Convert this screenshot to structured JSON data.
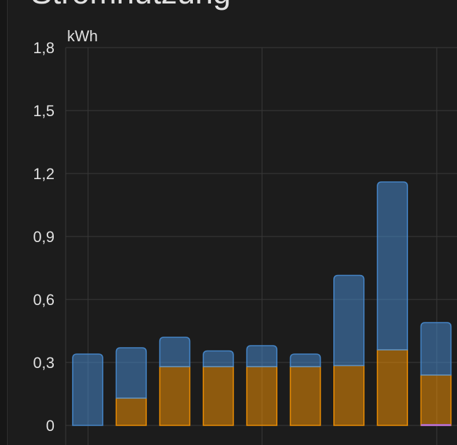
{
  "card": {
    "title": "Stromnutzung"
  },
  "chart_data": {
    "type": "bar",
    "ylabel": "kWh",
    "ylim": [
      0,
      1.8
    ],
    "y_ticks": [
      "0",
      "0,3",
      "0,6",
      "0,9",
      "1,2",
      "1,5",
      "1,8"
    ],
    "y_tick_values": [
      0,
      0.3,
      0.6,
      0.9,
      1.2,
      1.5,
      1.8
    ],
    "grid": true,
    "stacked": true,
    "bar_count": 9,
    "series": [
      {
        "color": "#ff9800",
        "values": [
          0,
          0.13,
          0.28,
          0.28,
          0.28,
          0.28,
          0.285,
          0.36,
          0.24
        ]
      },
      {
        "color": "#4a90d9",
        "values": [
          0.34,
          0.24,
          0.14,
          0.075,
          0.1,
          0.06,
          0.43,
          0.8,
          0.25
        ]
      },
      {
        "color": "#b06bd6",
        "values": [
          0,
          0,
          0,
          0,
          0,
          0,
          0,
          0,
          0.01
        ]
      }
    ]
  }
}
